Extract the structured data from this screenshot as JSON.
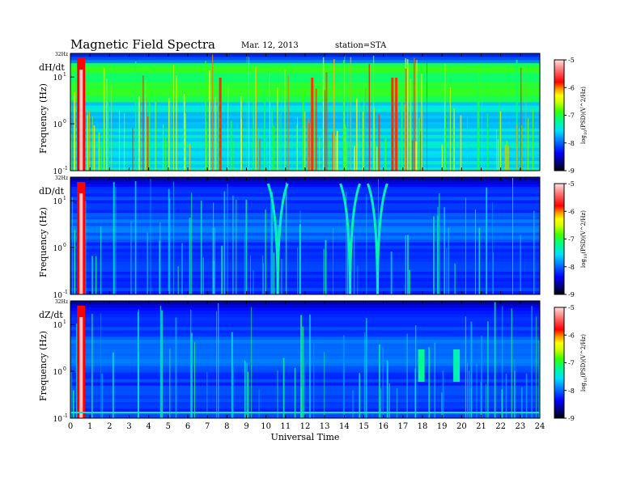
{
  "header": {
    "title": "Magnetic  Field  Spectra",
    "date": "Mar. 12, 2013",
    "station": "station=STA"
  },
  "colors": {
    "colormap": [
      "#000000",
      "#00006b",
      "#0000ff",
      "#0070ff",
      "#00e0ff",
      "#00ff80",
      "#40ff00",
      "#d0ff00",
      "#ffff00",
      "#ff9000",
      "#ff0000",
      "#ff6a6a",
      "#ffe0e0"
    ],
    "plot_background": "#00008c"
  },
  "chart_data": [
    {
      "type": "heatmap",
      "panel_label": "dH/dt",
      "ylabel": "Frequency  (Hz)",
      "xlim": [
        0,
        24
      ],
      "ylim_hz": [
        0.1,
        32
      ],
      "y_scale": "log",
      "y_top_label": "32Hz",
      "y_ticks": [
        {
          "label": "10",
          "exp": "1",
          "value": 10
        },
        {
          "label": "10",
          "exp": "0",
          "value": 1
        },
        {
          "label": "10",
          "exp": "-1",
          "value": 0.1
        }
      ],
      "colorbar": {
        "label": "log10(PSD)(V^2/Hz)",
        "ticks": [
          "-5",
          "-6",
          "-7",
          "-8",
          "-9"
        ],
        "range": [
          -9,
          -5
        ]
      },
      "notes": "Broad green/cyan band 2-20 Hz, intense red activity around 0.5 UT and 16.5 UT"
    },
    {
      "type": "heatmap",
      "panel_label": "dD/dt",
      "ylabel": "Frequency  (Hz)",
      "xlim": [
        0,
        24
      ],
      "ylim_hz": [
        0.1,
        32
      ],
      "y_scale": "log",
      "y_top_label": "32Hz",
      "y_ticks": [
        {
          "label": "10",
          "exp": "1",
          "value": 10
        },
        {
          "label": "10",
          "exp": "0",
          "value": 1
        },
        {
          "label": "10",
          "exp": "-1",
          "value": 0.1
        }
      ],
      "colorbar": {
        "label": "log10(PSD)(V^2/Hz)",
        "ticks": [
          "-5",
          "-6",
          "-7",
          "-8",
          "-9"
        ],
        "range": [
          -9,
          -5
        ]
      },
      "notes": "Mostly blue background with V-shaped emissions near 10.5, 14.3, 15.7 UT"
    },
    {
      "type": "heatmap",
      "panel_label": "dZ/dt",
      "ylabel": "Frequency  (Hz)",
      "xlim": [
        0,
        24
      ],
      "ylim_hz": [
        0.1,
        32
      ],
      "y_scale": "log",
      "y_top_label": "32Hz",
      "y_ticks": [
        {
          "label": "10",
          "exp": "1",
          "value": 10
        },
        {
          "label": "10",
          "exp": "0",
          "value": 1
        },
        {
          "label": "10",
          "exp": "-1",
          "value": 0.1
        }
      ],
      "colorbar": {
        "label": "log10(PSD)(V^2/Hz)",
        "ticks": [
          "-5",
          "-6",
          "-7",
          "-8",
          "-9"
        ],
        "range": [
          -9,
          -5
        ]
      },
      "notes": "Blue background, strong red at 0.5 UT, cyan bursts near 18 UT and 19.7 UT"
    }
  ],
  "xaxis": {
    "label": "Universal Time",
    "ticks": [
      "0",
      "1",
      "2",
      "3",
      "4",
      "5",
      "6",
      "7",
      "8",
      "9",
      "10",
      "11",
      "12",
      "13",
      "14",
      "15",
      "16",
      "17",
      "18",
      "19",
      "20",
      "21",
      "22",
      "23",
      "24"
    ]
  },
  "log_text": "log",
  "log_sub": "10",
  "cbar_unit": "(PSD)(V^2/Hz)"
}
